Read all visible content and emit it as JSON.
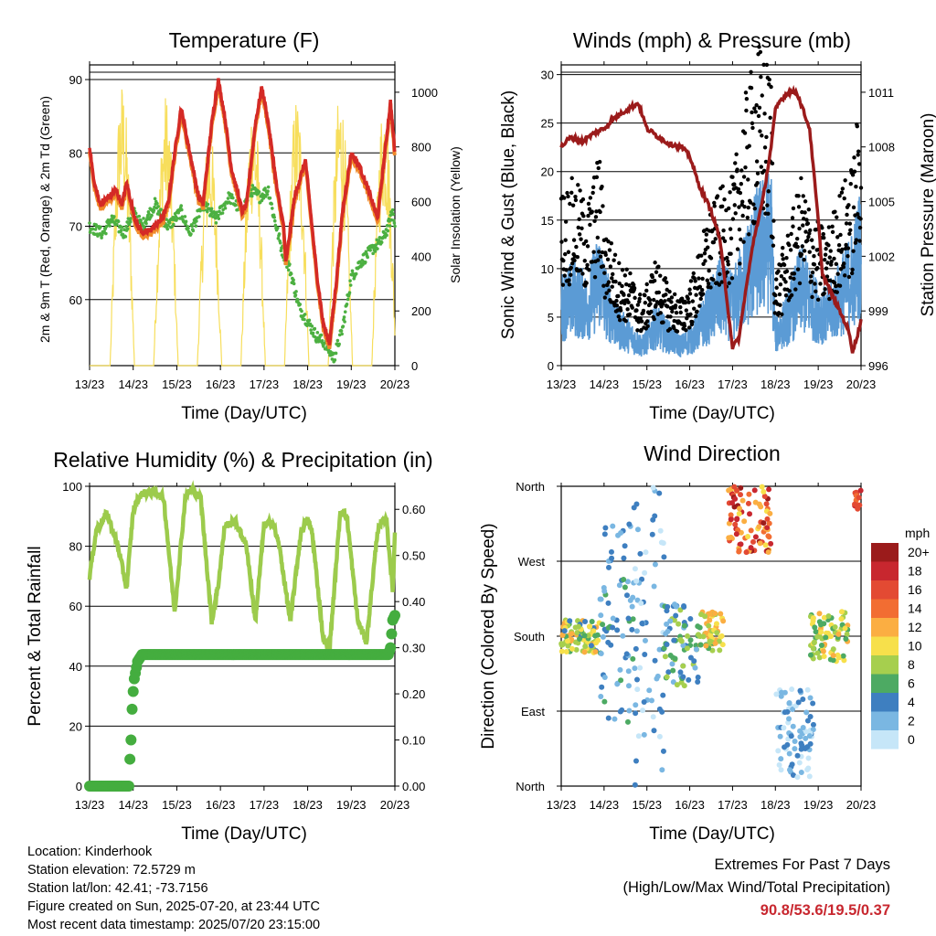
{
  "time_axis_labels": [
    "13/23",
    "14/23",
    "15/23",
    "16/23",
    "17/23",
    "18/23",
    "19/23",
    "20/23"
  ],
  "chart_data": [
    {
      "id": "temperature",
      "type": "line",
      "title": "Temperature (F)",
      "xlabel": "Time (Day/UTC)",
      "ylabel_left": "2m & 9m T (Red, Orange) & 2m Td (Green)",
      "ylabel_right": "Solar Insolation (Yellow)",
      "ylim_left": [
        51,
        92
      ],
      "ylim_right": [
        0,
        1100
      ],
      "yticks_left": [
        60,
        70,
        80,
        90
      ],
      "yticks_right": [
        0,
        200,
        400,
        600,
        800,
        1000
      ],
      "colors": {
        "t2m": "#d42a26",
        "t9m": "#f08a2a",
        "td2m": "#4cb041",
        "solar": "#f7de5c"
      },
      "series": [
        {
          "name": "2m T",
          "color": "#d42a26",
          "x": [
            0,
            0.1,
            0.25,
            0.45,
            0.6,
            0.75,
            0.85,
            1.0,
            1.1,
            1.25,
            1.5,
            1.65,
            1.8,
            1.95,
            2.1,
            2.3,
            2.5,
            2.6,
            2.8,
            2.95,
            3.1,
            3.25,
            3.5,
            3.6,
            3.8,
            3.95,
            4.1,
            4.3,
            4.45,
            4.5,
            4.7,
            4.95,
            5.2,
            5.35,
            5.5,
            5.65,
            5.8,
            6.0,
            6.2,
            6.45,
            6.6,
            6.75,
            6.9,
            7.0
          ],
          "y": [
            81,
            76,
            73,
            74,
            75,
            73,
            76,
            72,
            70,
            69,
            70,
            71,
            73,
            80,
            86,
            80,
            74,
            73,
            84,
            90,
            85,
            78,
            72,
            73,
            84,
            89,
            84,
            75,
            70,
            65,
            74,
            79,
            64,
            57,
            54,
            62,
            72,
            80,
            78,
            74,
            71,
            79,
            87,
            80
          ]
        },
        {
          "name": "2m Td",
          "color": "#4cb041",
          "x": [
            0,
            0.3,
            0.5,
            0.8,
            1.0,
            1.2,
            1.5,
            1.8,
            2.1,
            2.3,
            2.6,
            2.9,
            3.2,
            3.5,
            3.7,
            3.9,
            4.1,
            4.2,
            4.4,
            4.6,
            4.8,
            5.0,
            5.2,
            5.4,
            5.6,
            5.8,
            6.0,
            6.2,
            6.5,
            6.7,
            6.85,
            6.95,
            7.0
          ],
          "y": [
            70,
            69,
            71,
            69,
            72,
            70,
            73,
            70,
            72,
            69,
            73,
            71,
            74,
            72,
            75,
            74,
            75,
            72,
            67,
            64,
            59,
            57,
            55,
            54,
            52,
            56,
            63,
            65,
            67,
            68,
            70,
            72,
            70
          ]
        },
        {
          "name": "Solar Insolation",
          "color": "#f7de5c",
          "peak_days": [
            0.75,
            1.75,
            2.75,
            3.75,
            4.75,
            5.75,
            6.75
          ],
          "peak_values": [
            1050,
            1000,
            880,
            1000,
            1000,
            1020,
            1000
          ]
        }
      ]
    },
    {
      "id": "winds",
      "type": "scatter",
      "title": "Winds (mph) & Pressure (mb)",
      "xlabel": "Time (Day/UTC)",
      "ylabel_left": "Sonic Wind & Gust (Blue, Black)",
      "ylabel_right": "Station Pressure (Maroon)",
      "ylim_left": [
        0,
        31
      ],
      "ylim_right": [
        996,
        1012.5
      ],
      "yticks_left": [
        0,
        5,
        10,
        15,
        20,
        25,
        30
      ],
      "yticks_right": [
        996,
        999,
        1002,
        1005,
        1008,
        1011
      ],
      "colors": {
        "wind": "#5b9bd5",
        "gust": "#000000",
        "pressure": "#9b1b1b"
      },
      "series": [
        {
          "name": "Pressure",
          "color": "#9b1b1b",
          "x": [
            0,
            0.2,
            0.5,
            0.8,
            1.0,
            1.2,
            1.5,
            1.8,
            2.0,
            2.3,
            2.5,
            2.8,
            3.0,
            3.2,
            3.5,
            3.7,
            3.9,
            4.0,
            4.15,
            4.3,
            4.5,
            4.7,
            4.9,
            5.0,
            5.1,
            5.3,
            5.5,
            5.8,
            6.0,
            6.1,
            6.3,
            6.5,
            6.7,
            6.8,
            6.9,
            6.95,
            7.0
          ],
          "y": [
            1008,
            1008.5,
            1008.3,
            1008.8,
            1009,
            1009.5,
            1010,
            1010.4,
            1009,
            1008.5,
            1008.2,
            1008,
            1007.5,
            1006,
            1004.5,
            1003,
            999,
            997,
            997.5,
            1000,
            1003,
            1005,
            1008,
            1010,
            1010.5,
            1011,
            1011,
            1009,
            1004,
            1001,
            1000,
            999,
            998,
            996.8,
            997.5,
            998,
            998.5
          ]
        },
        {
          "name": "Wind",
          "color": "#5b9bd5",
          "x": [
            0,
            0.3,
            0.6,
            0.9,
            1.0,
            1.3,
            1.6,
            1.9,
            2.2,
            2.5,
            2.8,
            3.1,
            3.4,
            3.7,
            4.0,
            4.3,
            4.6,
            4.9,
            5.0,
            5.3,
            5.6,
            5.9,
            6.2,
            6.5,
            6.8,
            7.0
          ],
          "y": [
            6,
            7,
            6,
            9,
            7,
            4,
            3,
            2,
            4,
            3,
            2,
            3,
            5,
            7,
            6,
            9,
            12,
            13,
            3,
            5,
            8,
            6,
            5,
            7,
            9,
            12
          ]
        },
        {
          "name": "Gust",
          "color": "#000000",
          "x": [
            0,
            0.3,
            0.6,
            0.9,
            1.0,
            1.3,
            1.6,
            1.9,
            2.2,
            2.5,
            2.8,
            3.1,
            3.4,
            3.7,
            4.0,
            4.3,
            4.6,
            4.9,
            5.0,
            5.3,
            5.6,
            5.9,
            6.2,
            6.5,
            6.8,
            7.0
          ],
          "y": [
            13,
            14,
            12,
            16,
            11,
            8,
            7,
            5,
            8,
            6,
            5,
            7,
            11,
            13,
            14,
            20,
            24,
            22,
            7,
            10,
            14,
            11,
            10,
            13,
            15,
            21
          ]
        }
      ]
    },
    {
      "id": "humidity",
      "type": "line",
      "title": "Relative Humidity (%) & Precipitation (in)",
      "xlabel": "Time (Day/UTC)",
      "ylabel_left": "Percent & Total Rainfall",
      "ylim_left": [
        0,
        100
      ],
      "ylim_right": [
        0,
        0.65
      ],
      "yticks_left": [
        0,
        20,
        40,
        60,
        80,
        100
      ],
      "yticks_right": [
        0.0,
        0.1,
        0.2,
        0.3,
        0.4,
        0.5,
        0.6
      ],
      "colors": {
        "rh": "#9ccb4c",
        "rain": "#44ad3f"
      },
      "series": [
        {
          "name": "RH",
          "color": "#9ccb4c",
          "x": [
            0,
            0.15,
            0.4,
            0.65,
            0.85,
            1.0,
            1.15,
            1.3,
            1.5,
            1.7,
            1.95,
            2.2,
            2.35,
            2.55,
            2.8,
            2.95,
            3.1,
            3.35,
            3.6,
            3.8,
            4.0,
            4.2,
            4.35,
            4.6,
            4.85,
            5.0,
            5.1,
            5.35,
            5.5,
            5.75,
            5.9,
            6.15,
            6.35,
            6.6,
            6.8,
            6.95,
            7.0
          ],
          "y": [
            70,
            85,
            91,
            80,
            66,
            92,
            97,
            98,
            98,
            96,
            58,
            97,
            99,
            96,
            55,
            67,
            87,
            88,
            80,
            55,
            87,
            88,
            80,
            55,
            85,
            89,
            85,
            50,
            45,
            92,
            90,
            55,
            48,
            85,
            90,
            65,
            84
          ]
        },
        {
          "name": "Total Precipitation",
          "color": "#44ad3f",
          "x": [
            0,
            0.9,
            0.92,
            0.95,
            0.98,
            1.02,
            1.1,
            1.2,
            1.5,
            2.0,
            3.0,
            4.0,
            5.0,
            6.0,
            6.85,
            6.9,
            6.95,
            7.0
          ],
          "y": [
            0,
            0,
            0.05,
            0.1,
            0.18,
            0.23,
            0.27,
            0.285,
            0.285,
            0.285,
            0.285,
            0.285,
            0.285,
            0.285,
            0.285,
            0.3,
            0.36,
            0.37
          ]
        }
      ]
    },
    {
      "id": "wind_direction",
      "type": "scatter",
      "title": "Wind Direction",
      "xlabel": "Time (Day/UTC)",
      "ylabel_left": "Direction (Colored By Speed)",
      "ylim": [
        0,
        360
      ],
      "yticks": [
        "North",
        "East",
        "South",
        "West",
        "North"
      ],
      "legend_title": "mph",
      "legend_labels": [
        "20+",
        "18",
        "16",
        "14",
        "12",
        "10",
        "8",
        "6",
        "4",
        "2",
        "0"
      ],
      "legend_colors": [
        "#9b1b1b",
        "#c8272f",
        "#e34a33",
        "#f26d32",
        "#fbae42",
        "#f7e04b",
        "#a6cf4e",
        "#4daa63",
        "#3e7fc0",
        "#7ab7e2",
        "#c6e6f8"
      ],
      "clusters": [
        {
          "x": [
            0,
            0.9
          ],
          "dir": [
            160,
            200
          ],
          "speed": [
            4,
            12
          ]
        },
        {
          "x": [
            0.9,
            1.7
          ],
          "dir": [
            70,
            330
          ],
          "speed": [
            1,
            6
          ]
        },
        {
          "x": [
            1.7,
            2.4
          ],
          "dir": [
            0,
            360
          ],
          "speed": [
            0,
            5
          ]
        },
        {
          "x": [
            2.4,
            3.2
          ],
          "dir": [
            120,
            220
          ],
          "speed": [
            2,
            9
          ]
        },
        {
          "x": [
            3.2,
            3.8
          ],
          "dir": [
            160,
            210
          ],
          "speed": [
            6,
            13
          ]
        },
        {
          "x": [
            3.9,
            4.9
          ],
          "dir": [
            280,
            360
          ],
          "speed": [
            10,
            20
          ]
        },
        {
          "x": [
            5.0,
            5.9
          ],
          "dir": [
            10,
            120
          ],
          "speed": [
            0,
            4
          ]
        },
        {
          "x": [
            5.8,
            6.7
          ],
          "dir": [
            150,
            210
          ],
          "speed": [
            5,
            12
          ]
        },
        {
          "x": [
            6.85,
            7.0
          ],
          "dir": [
            330,
            360
          ],
          "speed": [
            14,
            18
          ]
        }
      ]
    }
  ],
  "footer": {
    "location": "Location: Kinderhook",
    "elevation": "Station elevation: 72.5729 m",
    "latlon": "Station lat/lon: 42.41; -73.7156",
    "created": "Figure created on Sun, 2025-07-20, at 23:44 UTC",
    "recent": "Most recent data timestamp: 2025/07/20 23:15:00"
  },
  "extremes": {
    "title": "Extremes For Past 7 Days",
    "subtitle": "(High/Low/Max Wind/Total Precipitation)",
    "values": "90.8/53.6/19.5/0.37"
  }
}
